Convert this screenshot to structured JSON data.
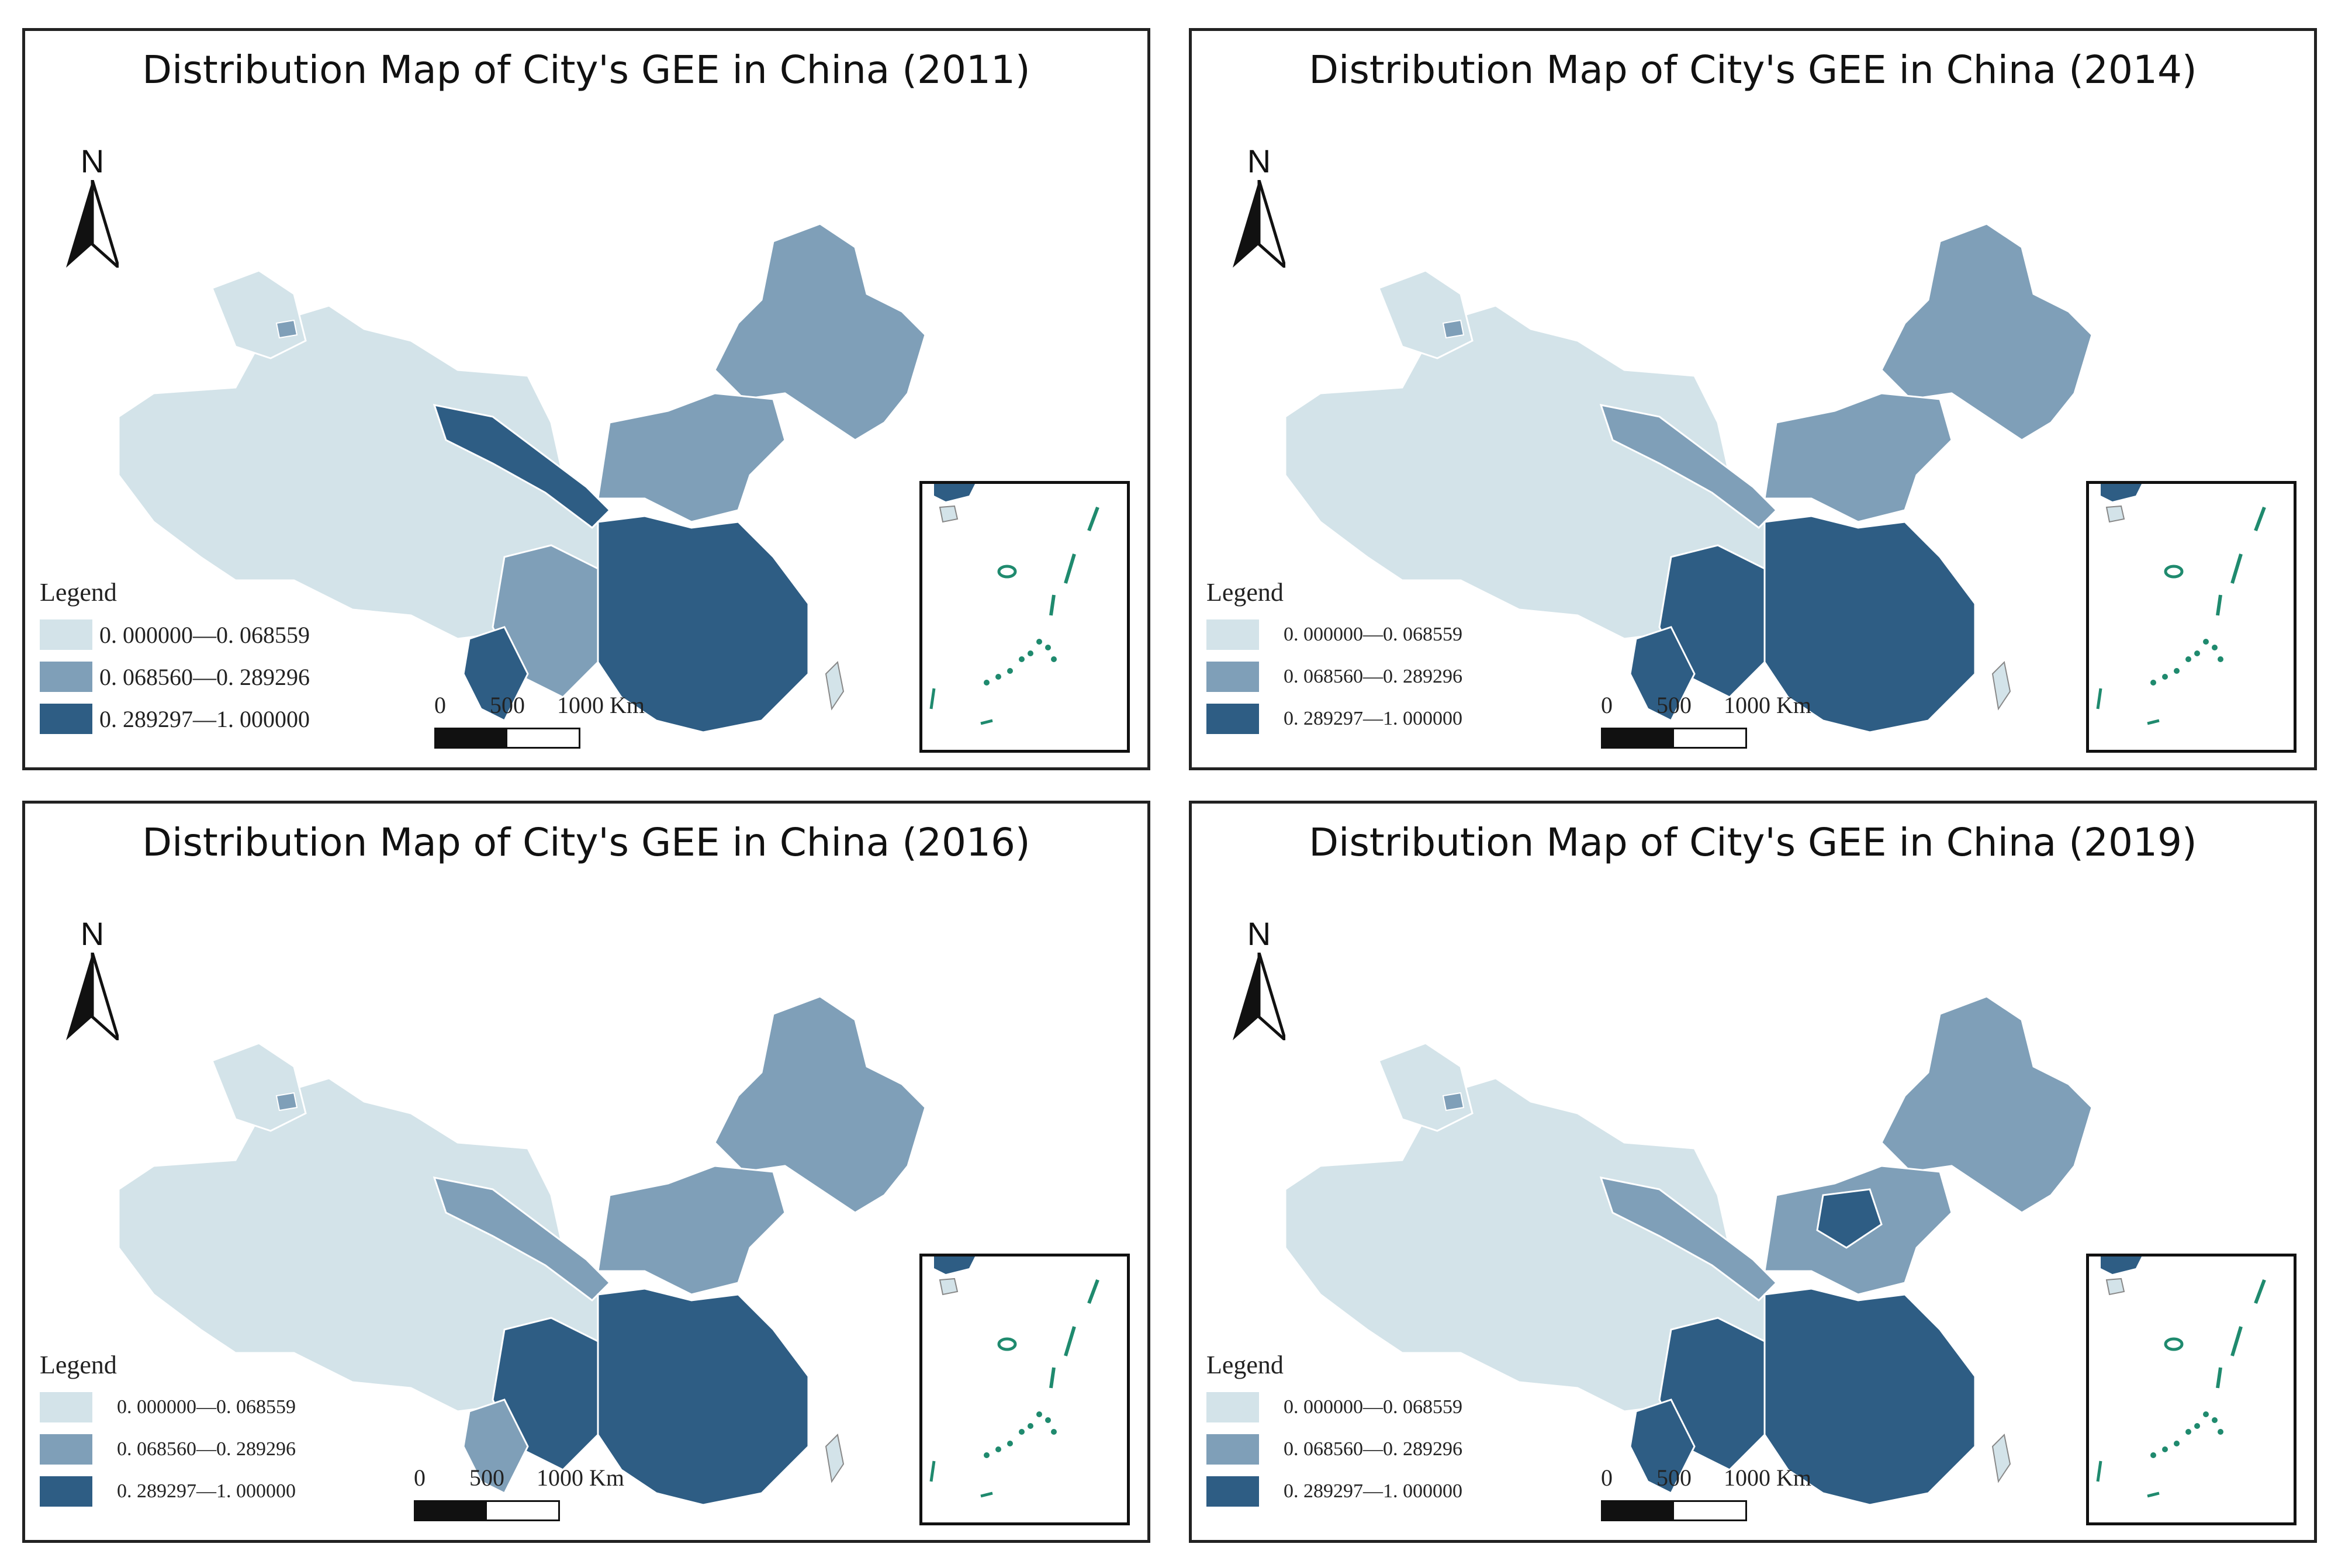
{
  "legend": {
    "title": "Legend",
    "items": [
      {
        "label": "0. 000000—0. 068559",
        "color": "#d3e3e9"
      },
      {
        "label": "0. 068560—0. 289296",
        "color": "#7f9fb8"
      },
      {
        "label": "0. 289297—1. 000000",
        "color": "#2e5d84"
      }
    ]
  },
  "north_label": "N",
  "scale": {
    "labels": [
      "0",
      "500",
      "1000 Km"
    ]
  },
  "maps": [
    {
      "title": "Distribution Map of City's GEE in China (2011)"
    },
    {
      "title": "Distribution Map of City's GEE in China (2014)"
    },
    {
      "title": "Distribution Map of City's GEE in China (2016)"
    },
    {
      "title": "Distribution Map of City's GEE in China (2019)"
    }
  ],
  "colors": {
    "low": "#d3e3e9",
    "mid": "#7f9fb8",
    "high": "#2e5d84",
    "border": "#222222",
    "island": "#1f8a6e"
  }
}
